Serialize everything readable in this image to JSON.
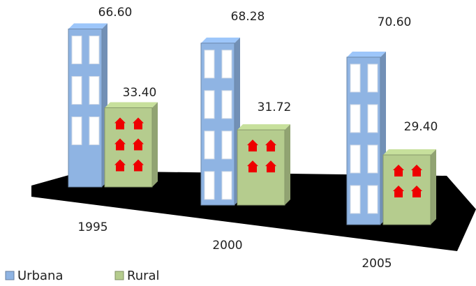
{
  "chart_data": {
    "type": "bar3d",
    "categories": [
      "1995",
      "2000",
      "2005"
    ],
    "series": [
      {
        "name": "Urbana",
        "color": "#8fb4e3",
        "values": [
          66.6,
          68.28,
          70.6
        ],
        "value_labels": [
          "66.60",
          "68.28",
          "70.60"
        ]
      },
      {
        "name": "Rural",
        "color": "#b5cc8e",
        "values": [
          33.4,
          31.72,
          29.4
        ],
        "value_labels": [
          "33.40",
          "31.72",
          "29.40"
        ]
      }
    ]
  }
}
